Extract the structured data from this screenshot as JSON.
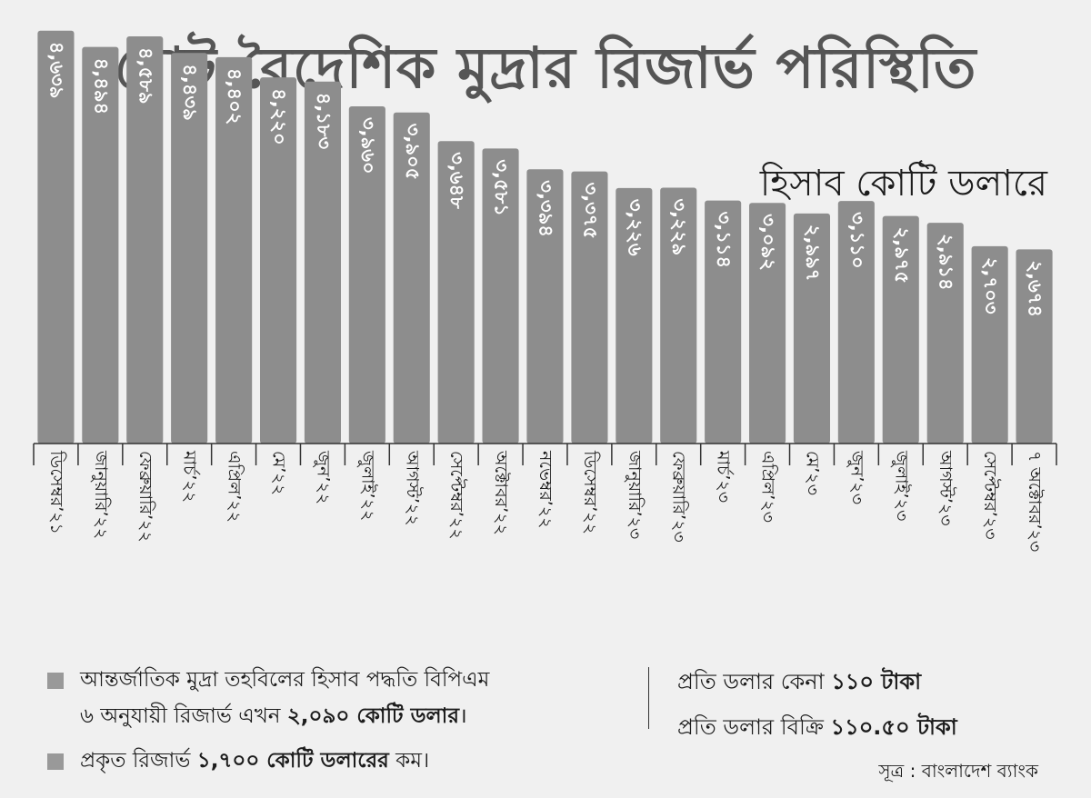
{
  "title": "মোট বৈদেশিক মুদ্রার রিজার্ভ পরিস্থিতি",
  "unit_label": "হিসাব কোটি ডলারে",
  "chart_data": {
    "type": "bar",
    "title": "মোট বৈদেশিক মুদ্রার রিজার্ভ পরিস্থিতি",
    "ylabel": "হিসাব কোটি ডলারে",
    "xlabel": "",
    "ylim": [
      0,
      4850
    ],
    "categories": [
      "ডিসেম্বর’২১",
      "জানুয়ারি’২২",
      "ফেব্রুয়ারি’২২",
      "মার্চ’২২",
      "এপ্রিল’২২",
      "মে’২২",
      "জুন’২২",
      "জুলাই’২২",
      "আগস্ট’২২",
      "সেপ্টেম্বর’২২",
      "অক্টোবর’২২",
      "নভেম্বর’২২",
      "ডিসেম্বর’২২",
      "জানুয়ারি’২৩",
      "ফেব্রুয়ারি’২৩",
      "মার্চ’২৩",
      "এপ্রিল’২৩",
      "মে’২৩",
      "জুন’২৩",
      "জুলাই’২৩",
      "আগস্ট’২৩",
      "সেপ্টেম্বর’২৩",
      "৭ অক্টোবর’২৩"
    ],
    "values": [
      4639,
      4494,
      4589,
      4439,
      4402,
      4220,
      4183,
      3960,
      3905,
      3648,
      3581,
      3394,
      3375,
      3226,
      3229,
      3114,
      3092,
      2997,
      3110,
      2975,
      2914,
      2703,
      2674
    ],
    "value_labels": [
      "৪,৬৩৯",
      "৪,৪৯৪",
      "৪,৫৮৯",
      "৪,৪৩৯",
      "৪,৪০২",
      "৪,২২০",
      "৪,১৮৩",
      "৩,৯৬০",
      "৩,৯০৫",
      "৩,৬৪৮",
      "৩,৫৮১",
      "৩,৩৯৪",
      "৩,৩৭৫",
      "৩,২২৬",
      "৩,২২৯",
      "৩,১১৪",
      "৩,০৯২",
      "২,৯৯৭",
      "৩,১১০",
      "২,৯৭৫",
      "২,৯১৪",
      "২,৭০৩",
      "২,৬৭৪"
    ],
    "grid": false,
    "colors": {
      "bar": "#8d8d8d",
      "value_text": "#ffffff"
    }
  },
  "notes": {
    "note1": {
      "line1": "আন্তর্জাতিক মুদ্রা তহবিলের হিসাব পদ্ধতি বিপিএম",
      "line2_prefix": "৬ অনুযায়ী রিজার্ভ এখন ",
      "line2_bold": "২,০৯০ কোটি ডলার",
      "line2_suffix": "।"
    },
    "note2": {
      "prefix": "প্রকৃত রিজার্ভ ",
      "bold": "১,৭০০ কোটি ডলারের",
      "suffix": " কম।"
    }
  },
  "rates": {
    "buy": {
      "prefix": "প্রতি ডলার কেনা ",
      "bold": "১১০ টাকা"
    },
    "sell": {
      "prefix": "প্রতি ডলার বিক্রি ",
      "bold": "১১০.৫০ টাকা"
    }
  },
  "source": "সূত্র : বাংলাদেশ ব্যাংক"
}
